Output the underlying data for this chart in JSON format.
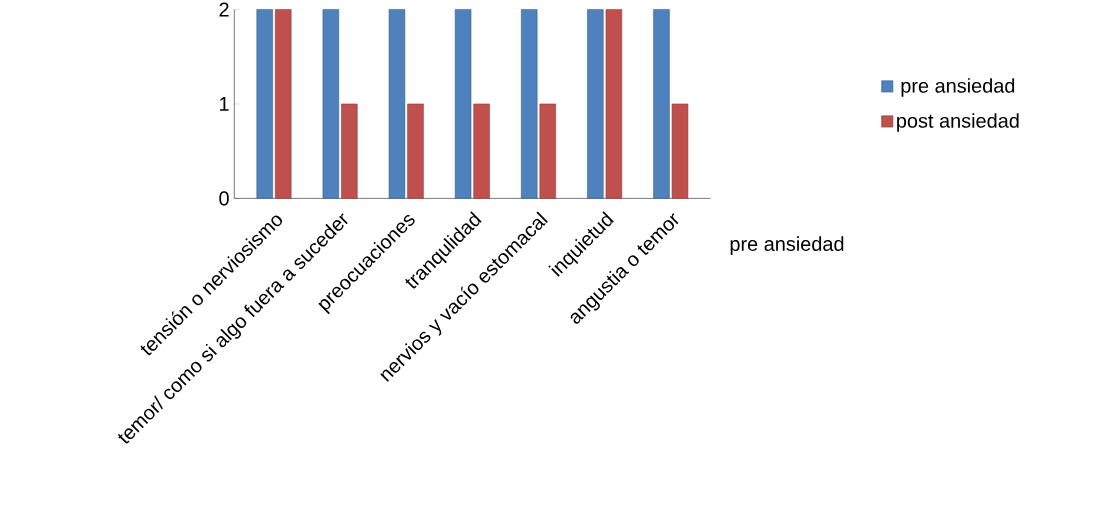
{
  "chart_data": {
    "type": "bar",
    "categories": [
      "tensión o nerviosismo",
      "temor/ como si algo fuera a suceder",
      "preocuaciones",
      "tranqulidad",
      "nervios y vacío estomacal",
      "inquietud",
      "angustia o temor"
    ],
    "series": [
      {
        "name": "pre ansiedad",
        "color": "#4f81bd",
        "values": [
          2,
          2,
          2,
          2,
          2,
          2,
          2
        ]
      },
      {
        "name": "post ansiedad",
        "color": "#c0504d",
        "values": [
          2,
          1,
          1,
          1,
          1,
          2,
          1
        ]
      }
    ],
    "ylim": [
      0,
      2
    ],
    "yticks": [
      0,
      1,
      2
    ],
    "grid": false,
    "legend": "right",
    "annotations": [
      "pre ansiedad"
    ]
  }
}
